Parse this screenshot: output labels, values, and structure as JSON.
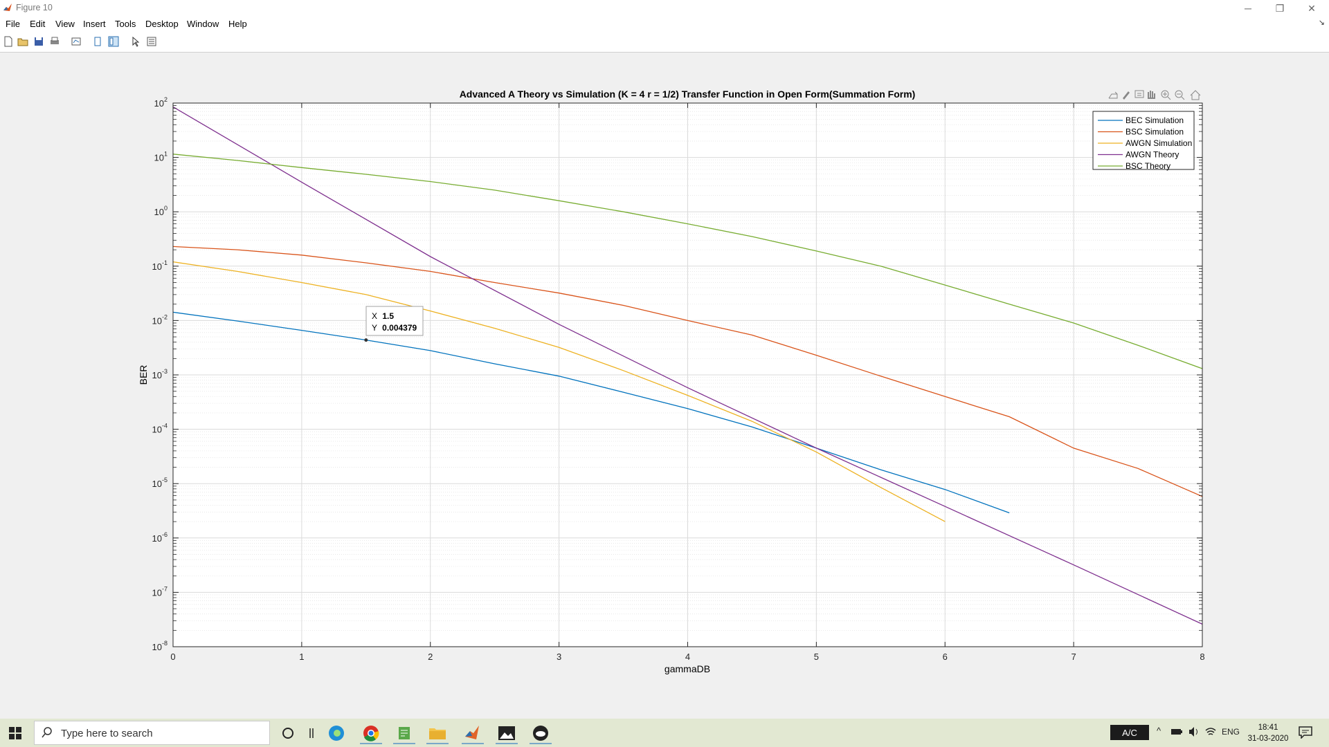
{
  "window": {
    "title": "Figure 10",
    "minimize": "─",
    "restore": "❐",
    "close": "✕"
  },
  "menu": [
    "File",
    "Edit",
    "View",
    "Insert",
    "Tools",
    "Desktop",
    "Window",
    "Help"
  ],
  "toolbar_icons": [
    "new-figure-icon",
    "open-icon",
    "save-icon",
    "print-icon",
    "link-plot-icon",
    "hide-plot-tools-icon",
    "show-plot-tools-icon",
    "edit-plot-icon",
    "property-inspector-icon"
  ],
  "axes_toolbar_icons": [
    "export-icon",
    "brush-icon",
    "data-tips-icon",
    "pan-icon",
    "zoom-in-icon",
    "zoom-out-icon",
    "home-icon"
  ],
  "chart_data": {
    "type": "line",
    "title": "Advanced A Theory vs Simulation (K = 4  r = 1/2) Transfer Function in Open Form(Summation Form)",
    "xlabel": "gammaDB",
    "ylabel": "BER",
    "xlim": [
      0,
      8
    ],
    "ylim": [
      1e-08,
      100
    ],
    "yscale": "log",
    "grid": "on (major and minor)",
    "legend_position": "top-right",
    "xticks": [
      "0",
      "1",
      "2",
      "3",
      "4",
      "5",
      "6",
      "7",
      "8"
    ],
    "yticks": [
      {
        "base": "10",
        "exp": "2"
      },
      {
        "base": "10",
        "exp": "1"
      },
      {
        "base": "10",
        "exp": "0"
      },
      {
        "base": "10",
        "exp": "-1"
      },
      {
        "base": "10",
        "exp": "-2"
      },
      {
        "base": "10",
        "exp": "-3"
      },
      {
        "base": "10",
        "exp": "-4"
      },
      {
        "base": "10",
        "exp": "-5"
      },
      {
        "base": "10",
        "exp": "-6"
      },
      {
        "base": "10",
        "exp": "-7"
      },
      {
        "base": "10",
        "exp": "-8"
      }
    ],
    "series": [
      {
        "name": "BEC Simulation",
        "color": "#0072BD",
        "x": [
          0,
          0.5,
          1,
          1.5,
          2,
          2.5,
          3,
          3.5,
          4,
          4.5,
          5,
          5.5,
          6,
          6.5
        ],
        "y": [
          0.0142,
          0.0098,
          0.0066,
          0.004379,
          0.0028,
          0.0016,
          0.00095,
          0.00048,
          0.00024,
          0.00011,
          4.5e-05,
          1.8e-05,
          7.8e-06,
          2.9e-06
        ]
      },
      {
        "name": "BSC Simulation",
        "color": "#D95319",
        "x": [
          0,
          0.5,
          1,
          1.5,
          2,
          2.5,
          3,
          3.5,
          4,
          4.5,
          5,
          5.5,
          6,
          6.5,
          7,
          7.5,
          8
        ],
        "y": [
          0.23,
          0.2,
          0.16,
          0.115,
          0.08,
          0.05,
          0.032,
          0.019,
          0.01,
          0.0054,
          0.0023,
          0.00095,
          0.0004,
          0.00017,
          4.5e-05,
          1.9e-05,
          5.8e-06
        ]
      },
      {
        "name": "AWGN Simulation",
        "color": "#EDB120",
        "x": [
          0,
          0.5,
          1,
          1.5,
          2,
          2.5,
          3,
          3.5,
          4,
          4.5,
          5,
          5.5,
          6
        ],
        "y": [
          0.12,
          0.08,
          0.05,
          0.03,
          0.015,
          0.0072,
          0.0032,
          0.0012,
          0.00042,
          0.00014,
          3.8e-05,
          8.5e-06,
          2e-06
        ]
      },
      {
        "name": "AWGN Theory",
        "color": "#7E2F8E",
        "x": [
          0,
          1,
          2,
          3,
          4,
          5,
          6,
          7,
          8
        ],
        "y": [
          85,
          3.5,
          0.15,
          0.0085,
          0.00058,
          4.5e-05,
          3.8e-06,
          3.2e-07,
          2.6e-08
        ]
      },
      {
        "name": "BSC Theory",
        "color": "#77AC30",
        "x": [
          0,
          0.5,
          1,
          1.5,
          2,
          2.5,
          3,
          3.5,
          4,
          4.5,
          5,
          5.5,
          6,
          6.5,
          7,
          7.5,
          8
        ],
        "y": [
          11.5,
          8.8,
          6.5,
          4.9,
          3.6,
          2.5,
          1.6,
          1.0,
          0.6,
          0.35,
          0.19,
          0.1,
          0.045,
          0.02,
          0.009,
          0.0035,
          0.0013
        ]
      }
    ],
    "datatip": {
      "x": 1.5,
      "y": 0.004379,
      "x_label": "X",
      "x_text": "1.5",
      "y_label": "Y",
      "y_text": "0.004379"
    }
  },
  "taskbar": {
    "search_placeholder": "Type here to search",
    "apps": [
      "cortana-icon",
      "task-view-icon",
      "edge-icon",
      "chrome-icon",
      "notepad-icon",
      "file-explorer-icon",
      "matlab-icon",
      "photos-icon",
      "game-icon"
    ],
    "ac_label": "A/C",
    "language": "ENG",
    "time": "18:41",
    "date": "31-03-2020"
  }
}
